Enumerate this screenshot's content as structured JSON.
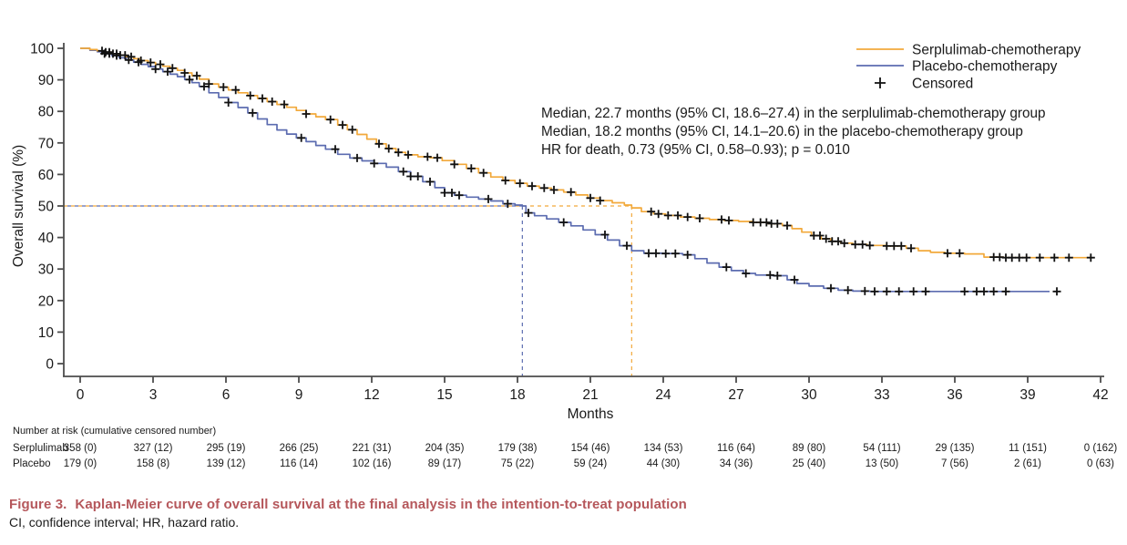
{
  "figure": {
    "caption_label": "Figure 3.",
    "caption_title": "Kaplan-Meier curve of overall survival at the final analysis in the intention-to-treat population",
    "caption_abbreviations": "CI, confidence interval; HR, hazard ratio.",
    "caption_color": "#B5575B"
  },
  "chart_data": {
    "type": "line",
    "subtype": "kaplan-meier-step",
    "title": "",
    "xlabel": "Months",
    "ylabel": "Overall survival (%)",
    "xlim": [
      0,
      42
    ],
    "ylim": [
      0,
      100
    ],
    "xticks": [
      0,
      3,
      6,
      9,
      12,
      15,
      18,
      21,
      24,
      27,
      30,
      33,
      36,
      39,
      42
    ],
    "yticks": [
      0,
      10,
      20,
      30,
      40,
      50,
      60,
      70,
      80,
      90,
      100
    ],
    "grid": false,
    "axis_color": "#4D4D4D",
    "text_color": "#1A1A1A",
    "censor_color": "#111111",
    "legend_position": "top-right",
    "legend": [
      {
        "label": "Serplulimab-chemotherapy",
        "type": "line",
        "color": "#F2A93B"
      },
      {
        "label": "Placebo-chemotherapy",
        "type": "line",
        "color": "#5C6CB0"
      },
      {
        "label": "Censored",
        "type": "plus-marker",
        "color": "#111111"
      }
    ],
    "annotation_lines": [
      "Median, 22.7 months (95% CI, 18.6–27.4) in the serplulimab-chemotherapy group",
      "Median, 18.2 months (95% CI, 14.1–20.6) in the placebo-chemotherapy group",
      "HR for death, 0.73 (95% CI, 0.58–0.93); p = 0.010"
    ],
    "reference": {
      "survival_pct": 50,
      "median_serplulimab_months": 22.7,
      "median_placebo_months": 18.2
    },
    "series": [
      {
        "name": "Placebo-chemotherapy",
        "color": "#5C6CB0",
        "points": [
          [
            0,
            100
          ],
          [
            0.4,
            99.4
          ],
          [
            0.7,
            98.9
          ],
          [
            1.0,
            98.3
          ],
          [
            1.3,
            97.7
          ],
          [
            1.6,
            97.0
          ],
          [
            1.9,
            96.3
          ],
          [
            2.2,
            95.6
          ],
          [
            2.5,
            94.9
          ],
          [
            2.8,
            94.2
          ],
          [
            3.1,
            93.4
          ],
          [
            3.4,
            92.6
          ],
          [
            3.7,
            91.8
          ],
          [
            4.0,
            91.0
          ],
          [
            4.3,
            90.1
          ],
          [
            4.6,
            89.1
          ],
          [
            4.9,
            87.9
          ],
          [
            5.3,
            85.9
          ],
          [
            5.7,
            84.4
          ],
          [
            6.1,
            82.8
          ],
          [
            6.5,
            81.2
          ],
          [
            6.9,
            79.5
          ],
          [
            7.3,
            77.6
          ],
          [
            7.7,
            75.8
          ],
          [
            8.1,
            74.1
          ],
          [
            8.5,
            72.8
          ],
          [
            8.9,
            71.6
          ],
          [
            9.3,
            70.4
          ],
          [
            9.7,
            69.2
          ],
          [
            10.1,
            68.0
          ],
          [
            10.6,
            66.4
          ],
          [
            11.1,
            65.2
          ],
          [
            11.6,
            64.3
          ],
          [
            12.1,
            63.5
          ],
          [
            12.6,
            62.3
          ],
          [
            13.1,
            60.9
          ],
          [
            13.6,
            59.4
          ],
          [
            14.1,
            57.7
          ],
          [
            14.6,
            55.8
          ],
          [
            15.0,
            54.2
          ],
          [
            15.4,
            53.4
          ],
          [
            15.9,
            52.8
          ],
          [
            16.4,
            52.2
          ],
          [
            16.9,
            51.6
          ],
          [
            17.4,
            50.7
          ],
          [
            17.9,
            50.3
          ],
          [
            18.2,
            50.0
          ],
          [
            18.35,
            47.8
          ],
          [
            18.7,
            46.9
          ],
          [
            19.2,
            45.9
          ],
          [
            19.7,
            44.8
          ],
          [
            20.2,
            43.7
          ],
          [
            20.7,
            42.4
          ],
          [
            21.2,
            40.9
          ],
          [
            21.7,
            39.2
          ],
          [
            22.2,
            37.4
          ],
          [
            22.7,
            35.8
          ],
          [
            23.2,
            35.0
          ],
          [
            24.0,
            34.9
          ],
          [
            24.8,
            34.5
          ],
          [
            25.3,
            33.3
          ],
          [
            25.8,
            31.9
          ],
          [
            26.3,
            30.6
          ],
          [
            26.8,
            29.5
          ],
          [
            27.3,
            28.6
          ],
          [
            27.8,
            28.1
          ],
          [
            28.5,
            27.9
          ],
          [
            29.1,
            26.6
          ],
          [
            29.5,
            25.4
          ],
          [
            30.0,
            24.6
          ],
          [
            30.6,
            23.9
          ],
          [
            31.2,
            23.3
          ],
          [
            31.8,
            23.0
          ],
          [
            32.5,
            22.9
          ],
          [
            39.9,
            22.9
          ]
        ],
        "censor_months": [
          1.0,
          1.2,
          1.5,
          2.0,
          2.4,
          3.1,
          3.6,
          4.5,
          5.1,
          6.1,
          7.1,
          9.1,
          10.5,
          11.4,
          12.1,
          13.3,
          13.6,
          13.9,
          14.4,
          15.0,
          15.3,
          15.6,
          16.8,
          17.6,
          18.45,
          19.9,
          21.6,
          22.5,
          23.4,
          23.7,
          24.1,
          24.5,
          25.0,
          26.6,
          27.4,
          28.4,
          28.7,
          29.4,
          30.9,
          31.6,
          32.3,
          32.7,
          33.2,
          33.7,
          34.3,
          34.8,
          36.4,
          36.9,
          37.2,
          37.6,
          38.1,
          40.2
        ]
      },
      {
        "name": "Serplulimab-chemotherapy",
        "color": "#F2A93B",
        "points": [
          [
            0,
            100
          ],
          [
            0.4,
            99.6
          ],
          [
            0.7,
            99.2
          ],
          [
            1.0,
            98.8
          ],
          [
            1.3,
            98.3
          ],
          [
            1.6,
            97.8
          ],
          [
            1.9,
            97.3
          ],
          [
            2.2,
            96.7
          ],
          [
            2.5,
            96.1
          ],
          [
            2.8,
            95.5
          ],
          [
            3.1,
            94.9
          ],
          [
            3.4,
            94.3
          ],
          [
            3.7,
            93.7
          ],
          [
            4.0,
            93.0
          ],
          [
            4.3,
            92.2
          ],
          [
            4.6,
            91.3
          ],
          [
            4.9,
            90.2
          ],
          [
            5.3,
            88.7
          ],
          [
            5.7,
            87.7
          ],
          [
            6.1,
            86.8
          ],
          [
            6.5,
            85.9
          ],
          [
            6.9,
            85.0
          ],
          [
            7.3,
            84.1
          ],
          [
            7.7,
            83.1
          ],
          [
            8.1,
            82.2
          ],
          [
            8.5,
            81.3
          ],
          [
            8.9,
            80.3
          ],
          [
            9.3,
            79.2
          ],
          [
            9.7,
            78.3
          ],
          [
            10.1,
            77.4
          ],
          [
            10.6,
            75.7
          ],
          [
            11.0,
            74.2
          ],
          [
            11.4,
            72.7
          ],
          [
            11.8,
            71.2
          ],
          [
            12.2,
            69.7
          ],
          [
            12.6,
            68.2
          ],
          [
            13.0,
            67.0
          ],
          [
            13.4,
            66.2
          ],
          [
            13.9,
            65.6
          ],
          [
            14.4,
            65.3
          ],
          [
            14.9,
            64.4
          ],
          [
            15.4,
            63.2
          ],
          [
            15.9,
            61.9
          ],
          [
            16.4,
            60.5
          ],
          [
            16.9,
            59.2
          ],
          [
            17.4,
            58.1
          ],
          [
            17.9,
            57.2
          ],
          [
            18.4,
            56.3
          ],
          [
            18.9,
            55.7
          ],
          [
            19.4,
            55.1
          ],
          [
            19.9,
            54.4
          ],
          [
            20.4,
            53.5
          ],
          [
            20.9,
            52.5
          ],
          [
            21.4,
            51.7
          ],
          [
            21.9,
            51.0
          ],
          [
            22.4,
            50.3
          ],
          [
            22.7,
            49.4
          ],
          [
            23.1,
            48.2
          ],
          [
            23.6,
            47.5
          ],
          [
            24.1,
            47.0
          ],
          [
            24.7,
            46.5
          ],
          [
            25.3,
            46.1
          ],
          [
            25.9,
            45.7
          ],
          [
            26.5,
            45.4
          ],
          [
            27.1,
            45.1
          ],
          [
            27.7,
            44.8
          ],
          [
            28.3,
            44.4
          ],
          [
            28.9,
            43.8
          ],
          [
            29.3,
            42.8
          ],
          [
            29.7,
            41.7
          ],
          [
            30.1,
            40.6
          ],
          [
            30.5,
            39.6
          ],
          [
            30.9,
            38.8
          ],
          [
            31.3,
            38.2
          ],
          [
            31.8,
            37.8
          ],
          [
            32.4,
            37.5
          ],
          [
            33.2,
            37.3
          ],
          [
            34.0,
            36.6
          ],
          [
            34.5,
            35.8
          ],
          [
            35.0,
            35.3
          ],
          [
            35.6,
            35.0
          ],
          [
            36.4,
            34.8
          ],
          [
            37.2,
            33.8
          ],
          [
            38.0,
            33.6
          ],
          [
            41.6,
            33.6
          ]
        ],
        "censor_months": [
          0.9,
          1.05,
          1.2,
          1.35,
          1.5,
          1.65,
          1.85,
          2.1,
          2.5,
          2.9,
          3.3,
          3.8,
          4.3,
          4.8,
          5.3,
          5.9,
          6.4,
          7.0,
          7.5,
          7.9,
          8.4,
          9.3,
          10.3,
          10.8,
          11.2,
          12.3,
          12.7,
          13.1,
          13.5,
          14.3,
          14.7,
          15.4,
          16.1,
          16.6,
          17.5,
          18.1,
          18.6,
          19.1,
          19.5,
          20.2,
          21.0,
          21.4,
          23.5,
          23.8,
          24.2,
          24.6,
          25.0,
          25.5,
          26.4,
          26.7,
          27.7,
          28.0,
          28.25,
          28.45,
          28.7,
          29.1,
          30.2,
          30.45,
          30.7,
          30.95,
          31.2,
          31.45,
          31.9,
          32.2,
          32.5,
          33.2,
          33.5,
          33.8,
          34.2,
          35.7,
          36.2,
          37.6,
          37.85,
          38.1,
          38.35,
          38.65,
          38.95,
          39.5,
          40.1,
          40.7,
          41.6
        ]
      }
    ],
    "risk_table": {
      "header": "Number at risk (cumulative censored number)",
      "time_points": [
        0,
        3,
        6,
        9,
        12,
        15,
        18,
        21,
        24,
        27,
        30,
        33,
        36,
        39,
        42
      ],
      "rows": [
        {
          "label": "Serplulimab",
          "values": [
            "358 (0)",
            "327 (12)",
            "295 (19)",
            "266 (25)",
            "221 (31)",
            "204 (35)",
            "179 (38)",
            "154 (46)",
            "134 (53)",
            "116 (64)",
            "89 (80)",
            "54 (111)",
            "29 (135)",
            "11 (151)",
            "0 (162)"
          ]
        },
        {
          "label": "Placebo",
          "values": [
            "179 (0)",
            "158 (8)",
            "139 (12)",
            "116 (14)",
            "102 (16)",
            "89 (17)",
            "75 (22)",
            "59 (24)",
            "44 (30)",
            "34 (36)",
            "25 (40)",
            "13 (50)",
            "7 (56)",
            "2 (61)",
            "0 (63)"
          ]
        }
      ]
    }
  }
}
